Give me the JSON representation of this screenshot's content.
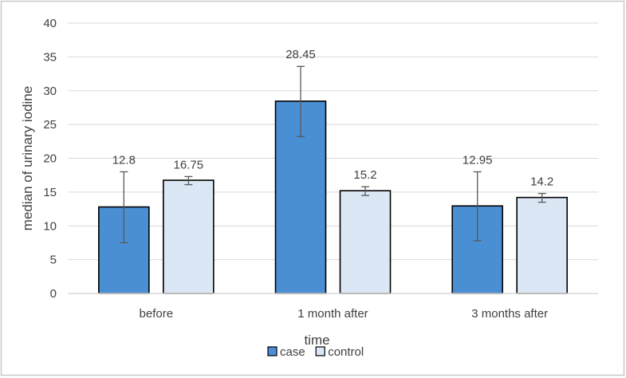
{
  "chart_data": {
    "type": "bar",
    "categories": [
      "before",
      "1 month after",
      "3 months after"
    ],
    "series": [
      {
        "name": "case",
        "values": [
          12.8,
          28.45,
          12.95
        ],
        "error_low": [
          7.5,
          23.2,
          7.8
        ],
        "error_high": [
          18.0,
          33.6,
          18.0
        ],
        "color": "#4a8fd4"
      },
      {
        "name": "control",
        "values": [
          16.75,
          15.2,
          14.2
        ],
        "error_low": [
          16.1,
          14.5,
          13.5
        ],
        "error_high": [
          17.3,
          15.8,
          14.8
        ],
        "color": "#dbe7f5"
      }
    ],
    "data_labels": [
      [
        "12.8",
        "28.45",
        "12.95"
      ],
      [
        "16.75",
        "15.2",
        "14.2"
      ]
    ],
    "xlabel": "time",
    "ylabel": "median of urinary iodine",
    "ylim": [
      0,
      40
    ],
    "yticks": [
      0,
      5,
      10,
      15,
      20,
      25,
      30,
      35,
      40
    ],
    "grid": true,
    "legend_position": "bottom",
    "frame_color": "#c8c8c8",
    "grid_color": "#d9d9d9",
    "bar_edge_color": "#000000",
    "error_bar_color": "#595959"
  }
}
